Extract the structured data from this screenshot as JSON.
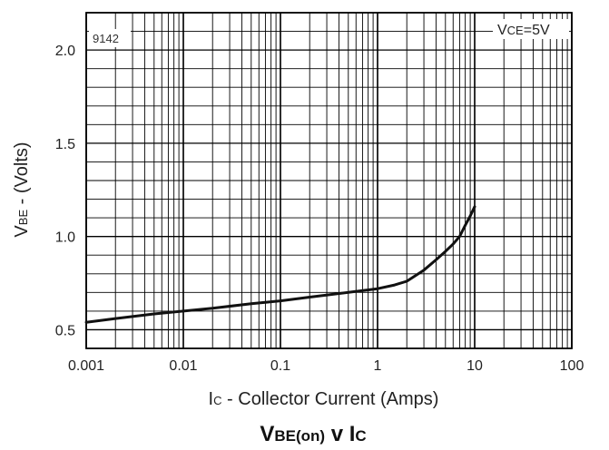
{
  "chart_data": {
    "type": "line",
    "figure_code": "9142",
    "title": {
      "main": "V",
      "main_sub": "BE(on)",
      "mid": " v ",
      "tail": "I",
      "tail_sub": "C"
    },
    "condition": {
      "main": "V",
      "sub": "CE",
      "rest": "=5V"
    },
    "xlabel": {
      "main": "I",
      "sub": "C",
      "rest": " - Collector Current (Amps)"
    },
    "ylabel": {
      "main": "V",
      "sub": "BE",
      "rest": " - (Volts)"
    },
    "x_scale": "log",
    "xlim": [
      0.001,
      100
    ],
    "ylim": [
      0.4,
      2.2
    ],
    "grid": true,
    "x_ticks": [
      0.001,
      0.01,
      0.1,
      1,
      10,
      100
    ],
    "x_tick_labels": [
      "0.001",
      "0.01",
      "0.1",
      "1",
      "10",
      "100"
    ],
    "y_ticks": [
      0.5,
      1.0,
      1.5,
      2.0
    ],
    "y_tick_labels": [
      "0.5",
      "1.0",
      "1.5",
      "2.0"
    ],
    "series": [
      {
        "x": [
          0.001,
          0.002,
          0.005,
          0.01,
          0.02,
          0.05,
          0.1,
          0.2,
          0.5,
          1,
          1.5,
          2,
          3,
          4,
          5,
          6,
          7,
          8,
          9,
          10
        ],
        "y": [
          0.54,
          0.56,
          0.585,
          0.6,
          0.615,
          0.64,
          0.655,
          0.675,
          0.7,
          0.72,
          0.74,
          0.76,
          0.82,
          0.875,
          0.92,
          0.96,
          1.0,
          1.06,
          1.11,
          1.16
        ]
      }
    ],
    "colors": {
      "grid": "#000000",
      "line": "#111111"
    }
  }
}
